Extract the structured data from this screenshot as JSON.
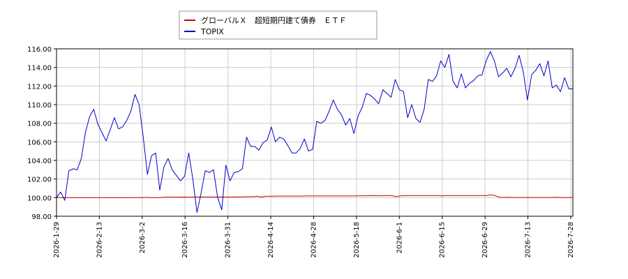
{
  "chart_data": {
    "type": "line",
    "title": "",
    "xlabel": "",
    "ylabel": "",
    "ylim": [
      98.0,
      116.0
    ],
    "grid": true,
    "legend_position": "top-center",
    "y_ticks": [
      "98.00",
      "100.00",
      "102.00",
      "104.00",
      "106.00",
      "108.00",
      "110.00",
      "112.00",
      "114.00",
      "116.00"
    ],
    "x_ticks": [
      "2026-1-29",
      "2026-2-13",
      "2026-3-2",
      "2026-3-16",
      "2026-3-31",
      "2026-4-14",
      "2026-4-28",
      "2026-5-18",
      "2026-6-1",
      "2026-6-15",
      "2026-6-29",
      "2026-7-13",
      "2026-7-28"
    ],
    "series": [
      {
        "name": "グローバルＸ　超短期円建て債券　ＥＴＦ",
        "color": "#cc0000",
        "values": [
          100.0,
          100.0,
          100.0,
          100.0,
          100.0,
          100.0,
          100.0,
          100.0,
          100.0,
          100.0,
          100.0,
          100.0,
          100.0,
          100.0,
          100.0,
          100.0,
          100.0,
          100.0,
          100.0,
          100.0,
          100.02,
          100.0,
          100.03,
          100.0,
          100.0,
          100.0,
          100.03,
          100.05,
          100.05,
          100.05,
          100.05,
          100.06,
          100.05,
          100.06,
          100.06,
          100.06,
          100.06,
          100.06,
          100.06,
          100.06,
          100.07,
          100.06,
          100.06,
          100.07,
          100.08,
          100.08,
          100.09,
          100.1,
          100.1,
          100.15,
          100.05,
          100.15,
          100.15,
          100.16,
          100.17,
          100.17,
          100.17,
          100.17,
          100.17,
          100.17,
          100.17,
          100.18,
          100.18,
          100.18,
          100.18,
          100.18,
          100.18,
          100.18,
          100.18,
          100.18,
          100.18,
          100.18,
          100.18,
          100.19,
          100.19,
          100.2,
          100.2,
          100.22,
          100.2,
          100.2,
          100.22,
          100.22,
          100.2,
          100.1,
          100.2,
          100.2,
          100.22,
          100.22,
          100.22,
          100.22,
          100.22,
          100.22,
          100.22,
          100.22,
          100.18,
          100.22,
          100.22,
          100.22,
          100.22,
          100.22,
          100.22,
          100.22,
          100.22,
          100.22,
          100.22,
          100.22,
          100.3,
          100.22,
          100.05,
          100.02,
          100.03,
          100.02,
          100.02,
          100.02,
          100.02,
          100.02,
          100.02,
          100.02,
          100.02,
          100.02,
          100.02,
          100.02,
          100.03,
          100.02,
          100.0,
          100.02,
          100.02
        ]
      },
      {
        "name": "TOPIX",
        "color": "#0000cc",
        "values": [
          100.0,
          100.6,
          99.7,
          102.9,
          103.1,
          103.0,
          104.2,
          107.0,
          108.7,
          109.5,
          107.9,
          107.0,
          106.1,
          107.3,
          108.6,
          107.4,
          107.6,
          108.3,
          109.3,
          111.1,
          110.0,
          106.5,
          102.5,
          104.5,
          104.8,
          100.8,
          103.3,
          104.2,
          103.0,
          102.4,
          101.8,
          102.3,
          104.8,
          102.0,
          98.4,
          100.5,
          102.9,
          102.7,
          103.0,
          100.0,
          98.7,
          103.5,
          101.8,
          102.7,
          102.8,
          103.1,
          106.5,
          105.5,
          105.5,
          105.1,
          105.9,
          106.2,
          107.6,
          106.0,
          106.5,
          106.3,
          105.6,
          104.8,
          104.8,
          105.3,
          106.3,
          105.0,
          105.2,
          108.2,
          108.0,
          108.3,
          109.3,
          110.5,
          109.5,
          108.9,
          107.8,
          108.5,
          106.9,
          108.8,
          109.7,
          111.2,
          111.0,
          110.6,
          110.1,
          111.6,
          111.2,
          110.8,
          112.7,
          111.6,
          111.4,
          108.6,
          110.0,
          108.5,
          108.1,
          109.5,
          112.7,
          112.5,
          113.1,
          114.7,
          114.0,
          115.4,
          112.5,
          111.8,
          113.3,
          111.8,
          112.3,
          112.6,
          113.1,
          113.2,
          114.7,
          115.7,
          114.7,
          113.0,
          113.4,
          113.9,
          113.0,
          113.9,
          115.3,
          113.5,
          110.5,
          113.2,
          113.7,
          114.4,
          113.1,
          114.7,
          111.8,
          112.1,
          111.4,
          112.9,
          111.7,
          111.7
        ]
      }
    ]
  }
}
